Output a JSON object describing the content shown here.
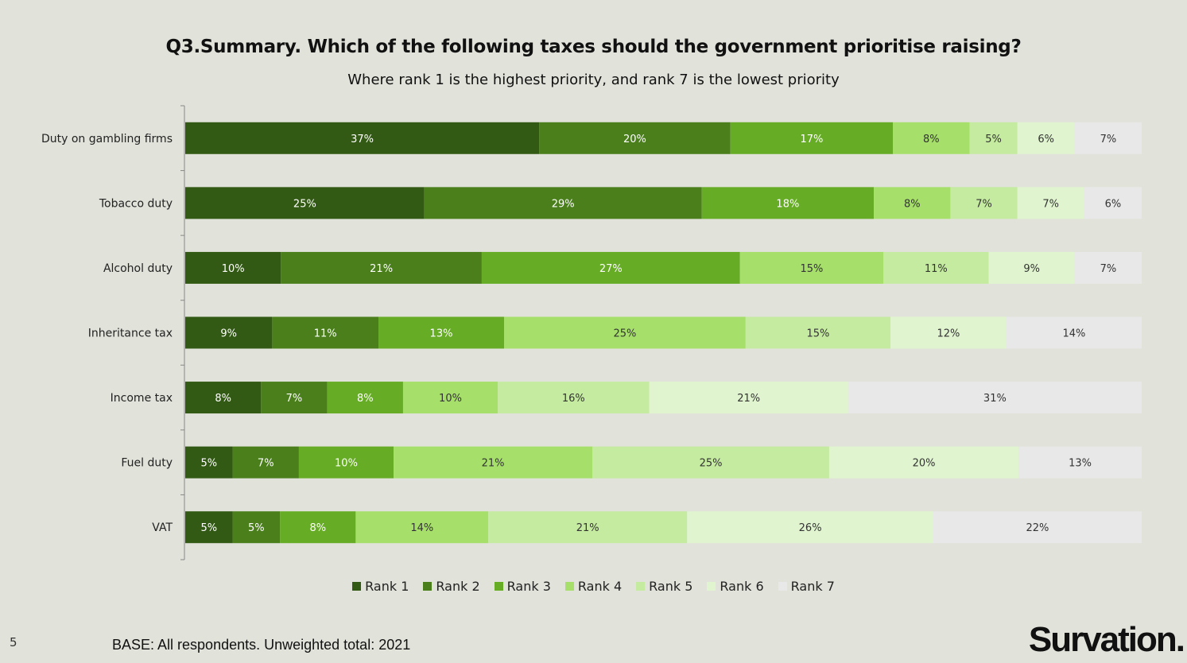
{
  "chart_data": {
    "type": "bar",
    "orientation": "horizontal-stacked-100",
    "title": "Q3.Summary. Which of the following taxes should the government prioritise raising?",
    "subtitle": "Where rank 1 is the highest priority, and rank 7 is the lowest priority",
    "categories": [
      "Duty on gambling firms",
      "Tobacco duty",
      "Alcohol duty",
      "Inheritance tax",
      "Income tax",
      "Fuel duty",
      "VAT"
    ],
    "series": [
      {
        "name": "Rank 1",
        "color": "#335a14",
        "values": [
          37,
          25,
          10,
          9,
          8,
          5,
          5
        ]
      },
      {
        "name": "Rank 2",
        "color": "#4a7f1c",
        "values": [
          20,
          29,
          21,
          11,
          7,
          7,
          5
        ]
      },
      {
        "name": "Rank 3",
        "color": "#66ac25",
        "values": [
          17,
          18,
          27,
          13,
          8,
          10,
          8
        ]
      },
      {
        "name": "Rank 4",
        "color": "#a6e06a",
        "values": [
          8,
          8,
          15,
          25,
          10,
          21,
          14
        ]
      },
      {
        "name": "Rank 5",
        "color": "#c5eba0",
        "values": [
          5,
          7,
          11,
          15,
          16,
          25,
          21
        ]
      },
      {
        "name": "Rank 6",
        "color": "#e0f5cf",
        "values": [
          6,
          7,
          9,
          12,
          21,
          20,
          26
        ]
      },
      {
        "name": "Rank 7",
        "color": "#e8e8e8",
        "values": [
          7,
          6,
          7,
          14,
          31,
          13,
          22
        ]
      }
    ],
    "value_suffix": "%",
    "legend_position": "bottom",
    "grid": false
  },
  "footer": {
    "page_number": "5",
    "base": "BASE: All respondents. Unweighted total: 2021",
    "logo": "Survation."
  }
}
